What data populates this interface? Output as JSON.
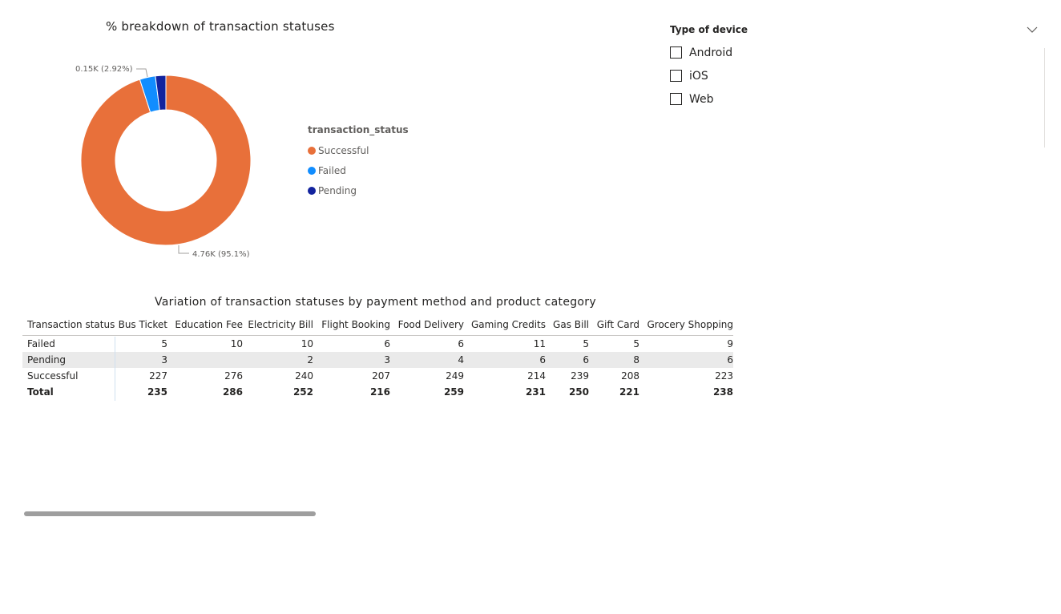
{
  "donut": {
    "title": "% breakdown of transaction statuses",
    "legend_title": "transaction_status",
    "chart_data": {
      "type": "pie",
      "title": "% breakdown of transaction statuses",
      "legend_title": "transaction_status",
      "categories": [
        "Successful",
        "Failed",
        "Pending"
      ],
      "values": [
        4.76,
        0.15,
        0.099
      ],
      "percents": [
        95.1,
        2.92,
        1.98
      ],
      "unit": "K",
      "colors": [
        "#e8703a",
        "#118dff",
        "#12239e"
      ],
      "data_labels": [
        {
          "category": "Successful",
          "text": "4.76K (95.1%)"
        },
        {
          "category": "Failed",
          "text": "0.15K (2.92%)"
        }
      ],
      "legend_position": "right"
    }
  },
  "slicer": {
    "title": "Type of device",
    "options": [
      {
        "label": "Android",
        "checked": false
      },
      {
        "label": "iOS",
        "checked": false
      },
      {
        "label": "Web",
        "checked": false
      }
    ]
  },
  "matrix": {
    "title": "Variation of transaction statuses by payment method and product category",
    "chart_data": {
      "type": "table",
      "columns": [
        "Transaction status",
        "Bus Ticket",
        "Education Fee",
        "Electricity Bill",
        "Flight Booking",
        "Food Delivery",
        "Gaming Credits",
        "Gas Bill",
        "Gift Card",
        "Grocery Shopping"
      ],
      "rows": [
        [
          "Failed",
          "5",
          "10",
          "10",
          "6",
          "6",
          "11",
          "5",
          "5",
          "9"
        ],
        [
          "Pending",
          "3",
          "",
          "2",
          "3",
          "4",
          "6",
          "6",
          "8",
          "6"
        ],
        [
          "Successful",
          "227",
          "276",
          "240",
          "207",
          "249",
          "214",
          "239",
          "208",
          "223"
        ]
      ],
      "total_row": [
        "Total",
        "235",
        "286",
        "252",
        "216",
        "259",
        "231",
        "250",
        "221",
        "238"
      ]
    }
  }
}
